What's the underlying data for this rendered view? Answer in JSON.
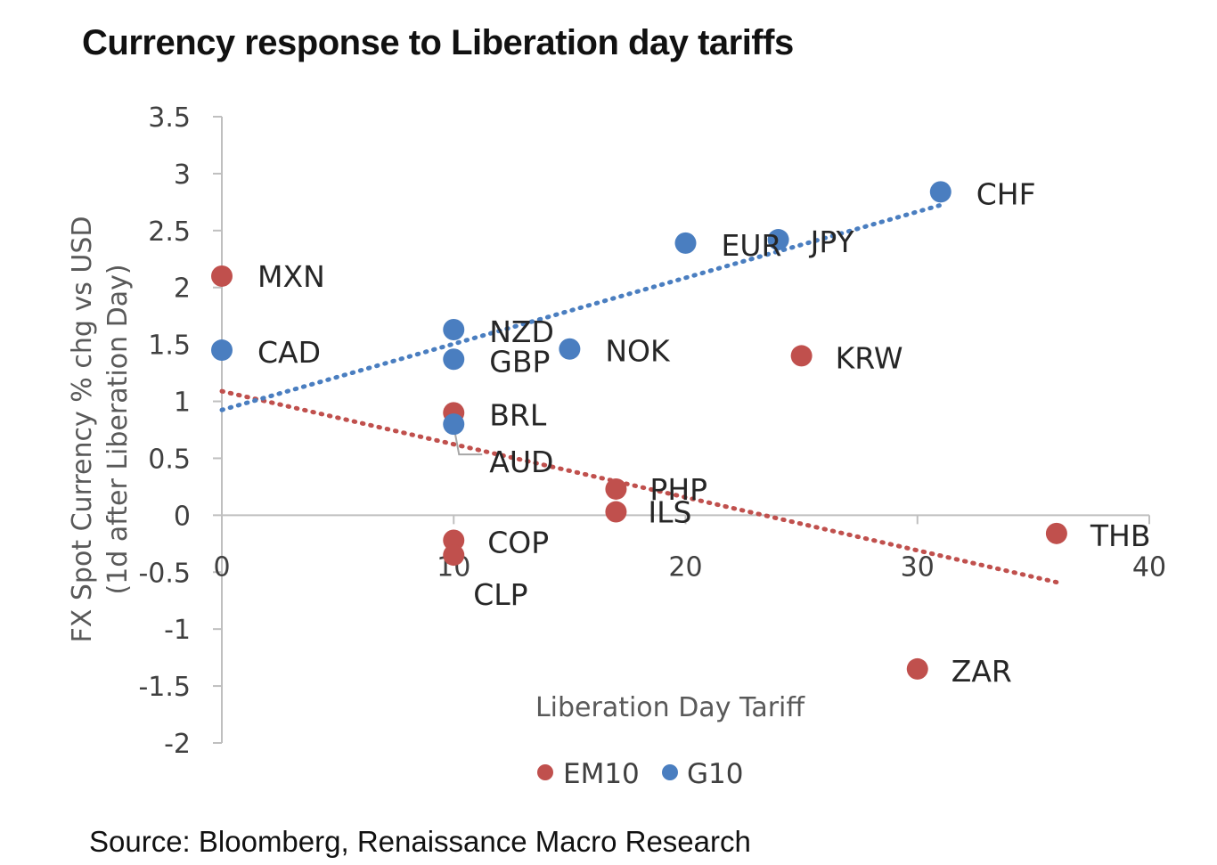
{
  "title": "Currency response to Liberation day tariffs",
  "source": "Source: Bloomberg, Renaissance Macro Research",
  "chart_data": {
    "type": "scatter",
    "xlabel": "Liberation Day Tariff",
    "ylabel_lines": [
      "FX Spot Currency % chg vs USD",
      "(1d after Liberation Day)"
    ],
    "xlim": [
      0,
      40
    ],
    "ylim": [
      -2,
      3.5
    ],
    "xticks": [
      "0",
      "10",
      "20",
      "30",
      "40"
    ],
    "yticks": [
      "-2",
      "-1.5",
      "-1",
      "-0.5",
      "0",
      "0.5",
      "1",
      "1.5",
      "2",
      "2.5",
      "3",
      "3.5"
    ],
    "legend_position": "bottom",
    "series": [
      {
        "name": "EM10",
        "color": "#C0504D",
        "trendline": "linear",
        "points": [
          {
            "label": "MXN",
            "x": 0,
            "y": 2.1
          },
          {
            "label": "BRL",
            "x": 10,
            "y": 0.9
          },
          {
            "label": "COP",
            "x": 10,
            "y": -0.22
          },
          {
            "label": "CLP",
            "x": 10,
            "y": -0.35
          },
          {
            "label": "PHP",
            "x": 17,
            "y": 0.23
          },
          {
            "label": "ILS",
            "x": 17,
            "y": 0.03
          },
          {
            "label": "KRW",
            "x": 25,
            "y": 1.4
          },
          {
            "label": "ZAR",
            "x": 30,
            "y": -1.35
          },
          {
            "label": "THB",
            "x": 36,
            "y": -0.16
          }
        ]
      },
      {
        "name": "G10",
        "color": "#4A7EC0",
        "trendline": "linear",
        "points": [
          {
            "label": "CAD",
            "x": 0,
            "y": 1.45
          },
          {
            "label": "NZD",
            "x": 10,
            "y": 1.63
          },
          {
            "label": "GBP",
            "x": 10,
            "y": 1.37
          },
          {
            "label": "AUD",
            "x": 10,
            "y": 0.8
          },
          {
            "label": "NOK",
            "x": 15,
            "y": 1.46
          },
          {
            "label": "EUR",
            "x": 20,
            "y": 2.39
          },
          {
            "label": "JPY",
            "x": 24,
            "y": 2.42
          },
          {
            "label": "CHF",
            "x": 31,
            "y": 2.84
          }
        ]
      }
    ]
  }
}
